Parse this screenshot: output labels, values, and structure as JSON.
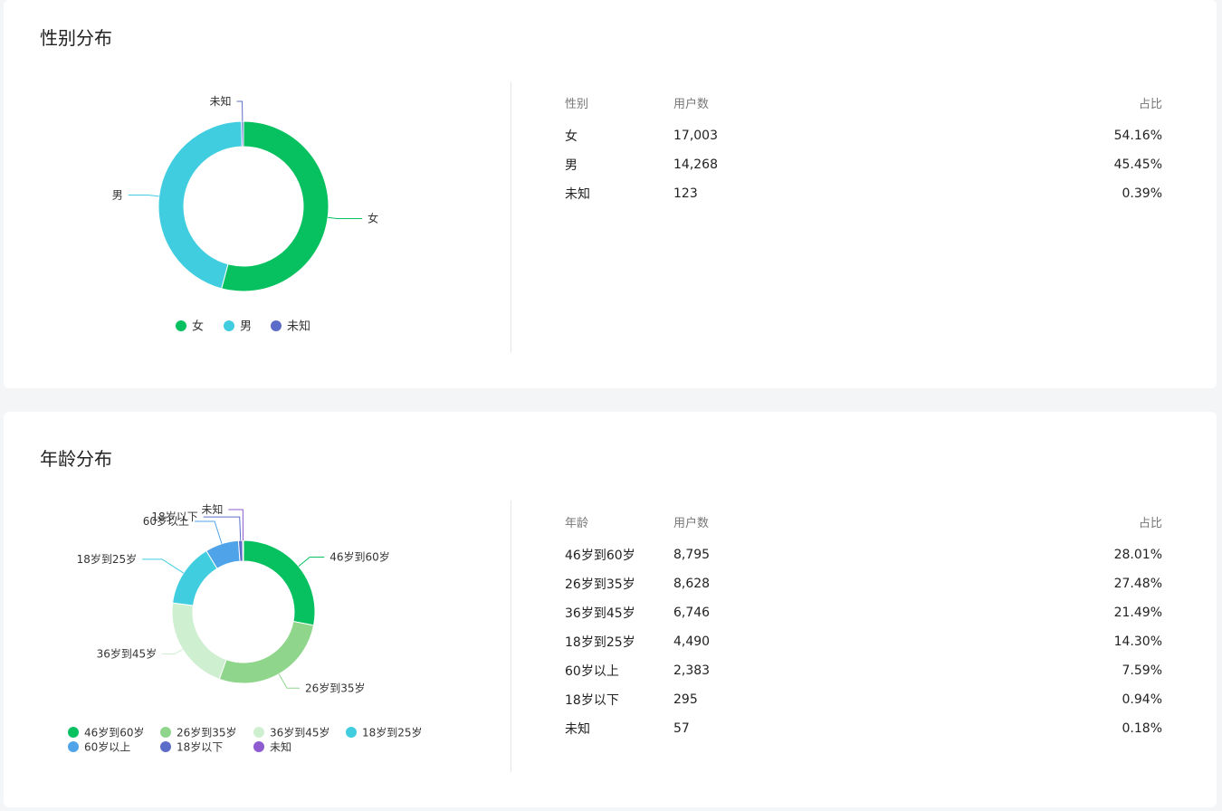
{
  "gender": {
    "title": "性别分布",
    "table": {
      "headers": [
        "性别",
        "用户数",
        "占比"
      ],
      "rows": [
        {
          "label": "女",
          "count": "17,003",
          "pct": "54.16%"
        },
        {
          "label": "男",
          "count": "14,268",
          "pct": "45.45%"
        },
        {
          "label": "未知",
          "count": "123",
          "pct": "0.39%"
        }
      ]
    }
  },
  "age": {
    "title": "年龄分布",
    "table": {
      "headers": [
        "年龄",
        "用户数",
        "占比"
      ],
      "rows": [
        {
          "label": "46岁到60岁",
          "count": "8,795",
          "pct": "28.01%"
        },
        {
          "label": "26岁到35岁",
          "count": "8,628",
          "pct": "27.48%"
        },
        {
          "label": "36岁到45岁",
          "count": "6,746",
          "pct": "21.49%"
        },
        {
          "label": "18岁到25岁",
          "count": "4,490",
          "pct": "14.30%"
        },
        {
          "label": "60岁以上",
          "count": "2,383",
          "pct": "7.59%"
        },
        {
          "label": "18岁以下",
          "count": "295",
          "pct": "0.94%"
        },
        {
          "label": "未知",
          "count": "57",
          "pct": "0.18%"
        }
      ]
    }
  },
  "chart_data": [
    {
      "type": "pie",
      "title": "性别分布",
      "donut": true,
      "legend_position": "bottom",
      "series": [
        {
          "values": [
            17003,
            14268,
            123
          ]
        }
      ],
      "categories": [
        "女",
        "男",
        "未知"
      ],
      "colors": [
        "#07c160",
        "#40cde0",
        "#5b6dc8"
      ]
    },
    {
      "type": "pie",
      "title": "年龄分布",
      "donut": true,
      "legend_position": "bottom",
      "series": [
        {
          "values": [
            8795,
            8628,
            6746,
            4490,
            2383,
            295,
            57
          ]
        }
      ],
      "categories": [
        "46岁到60岁",
        "26岁到35岁",
        "36岁到45岁",
        "18岁到25岁",
        "60岁以上",
        "18岁以下",
        "未知"
      ],
      "colors": [
        "#07c160",
        "#8fd68c",
        "#cfefd1",
        "#40cde0",
        "#4fa3e8",
        "#5b6dc8",
        "#8e5bd0"
      ]
    }
  ]
}
